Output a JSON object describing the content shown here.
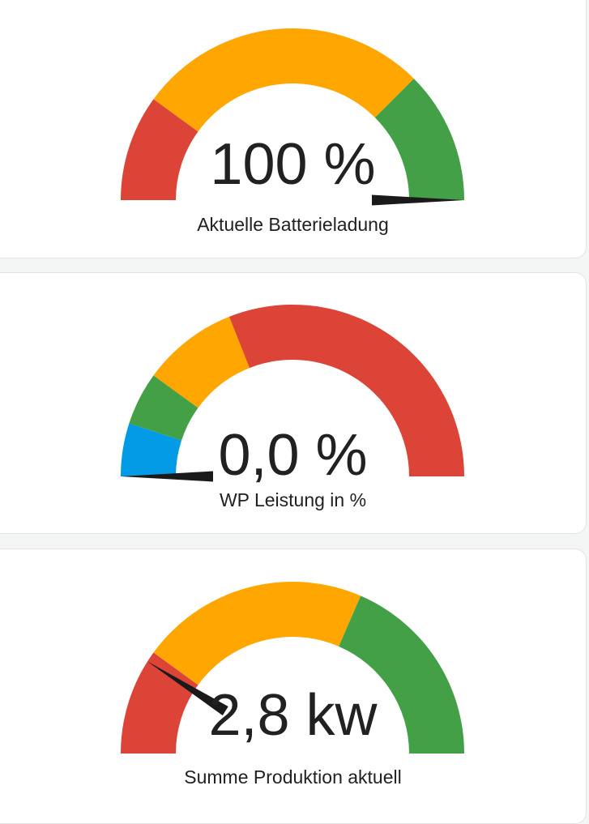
{
  "gauges": [
    {
      "value_text": "100 %",
      "label": "Aktuelle Batterieladung",
      "needle_fraction": 1.0,
      "segments": [
        {
          "from": 0.0,
          "to": 0.2,
          "color": "#db4437"
        },
        {
          "from": 0.2,
          "to": 0.75,
          "color": "#ffa600"
        },
        {
          "from": 0.75,
          "to": 1.0,
          "color": "#43a047"
        }
      ]
    },
    {
      "value_text": "0,0 %",
      "label": "WP Leistung in %",
      "needle_fraction": 0.0,
      "segments": [
        {
          "from": 0.0,
          "to": 0.1,
          "color": "#039be5"
        },
        {
          "from": 0.1,
          "to": 0.2,
          "color": "#43a047"
        },
        {
          "from": 0.2,
          "to": 0.38,
          "color": "#ffa600"
        },
        {
          "from": 0.38,
          "to": 1.0,
          "color": "#db4437"
        }
      ]
    },
    {
      "value_text": "2,8 kw",
      "label": "Summe Produktion aktuell",
      "needle_fraction": 0.18,
      "segments": [
        {
          "from": 0.0,
          "to": 0.2,
          "color": "#db4437"
        },
        {
          "from": 0.2,
          "to": 0.63,
          "color": "#ffa600"
        },
        {
          "from": 0.63,
          "to": 1.0,
          "color": "#43a047"
        }
      ]
    }
  ],
  "colors": {
    "background": "#f4f5f5",
    "card": "#ffffff",
    "text": "#212121",
    "needle": "#1a1a1a"
  }
}
